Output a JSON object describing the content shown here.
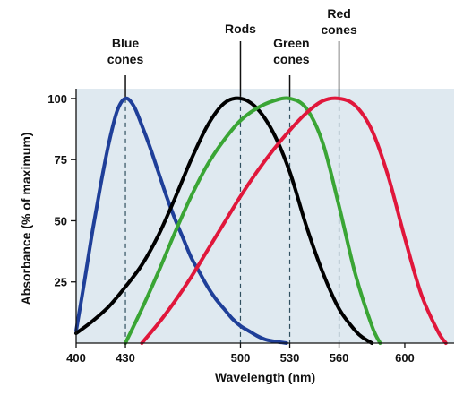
{
  "chart_data": {
    "type": "line",
    "xlabel": "Wavelength (nm)",
    "ylabel": "Absorbance (% of maximum)",
    "xlim": [
      400,
      630
    ],
    "ylim": [
      0,
      104
    ],
    "x_ticks": [
      400,
      430,
      500,
      530,
      560,
      600
    ],
    "y_ticks": [
      25,
      50,
      75,
      100
    ],
    "grid": false,
    "plot_background": "#dfe9f0",
    "series": [
      {
        "name": "Blue cones",
        "label_lines": [
          "Blue",
          "cones"
        ],
        "peak": 430,
        "color": "#1f3f99",
        "x": [
          400,
          405,
          410,
          415,
          420,
          425,
          430,
          435,
          440,
          445,
          450,
          455,
          460,
          465,
          470,
          475,
          480,
          485,
          490,
          495,
          500,
          505,
          510,
          515,
          520,
          525,
          528
        ],
        "y": [
          5,
          25,
          46,
          65,
          82,
          95,
          100,
          97,
          89,
          80,
          70,
          60,
          51,
          43,
          35,
          29,
          23,
          18,
          14,
          10,
          7,
          5,
          3,
          1.5,
          0.8,
          0.3,
          0
        ]
      },
      {
        "name": "Rods",
        "label_lines": [
          "Rods"
        ],
        "peak": 500,
        "color": "#000000",
        "x": [
          400,
          410,
          420,
          430,
          440,
          450,
          460,
          470,
          480,
          490,
          500,
          510,
          520,
          530,
          540,
          550,
          560,
          570,
          575,
          580
        ],
        "y": [
          4,
          9,
          15,
          23,
          32,
          44,
          59,
          75,
          89,
          98,
          100,
          96,
          86,
          70,
          48,
          29,
          14,
          5,
          2,
          0
        ]
      },
      {
        "name": "Green cones",
        "label_lines": [
          "Green",
          "cones"
        ],
        "peak": 530,
        "color": "#3aa535",
        "x": [
          430,
          440,
          450,
          460,
          470,
          480,
          490,
          500,
          510,
          520,
          530,
          540,
          550,
          560,
          570,
          580,
          585
        ],
        "y": [
          0,
          14,
          29,
          45,
          60,
          73,
          83,
          91,
          96,
          99,
          100,
          96,
          82,
          56,
          28,
          7,
          0
        ]
      },
      {
        "name": "Red cones",
        "label_lines": [
          "Red",
          "cones"
        ],
        "peak": 560,
        "color": "#e0173b",
        "x": [
          440,
          450,
          460,
          470,
          480,
          490,
          500,
          510,
          520,
          530,
          540,
          550,
          560,
          570,
          580,
          590,
          600,
          610,
          620,
          625
        ],
        "y": [
          0,
          8,
          17,
          27,
          38,
          49,
          60,
          70,
          79,
          87,
          94,
          99,
          100,
          97,
          87,
          68,
          43,
          20,
          5,
          0
        ]
      }
    ]
  }
}
